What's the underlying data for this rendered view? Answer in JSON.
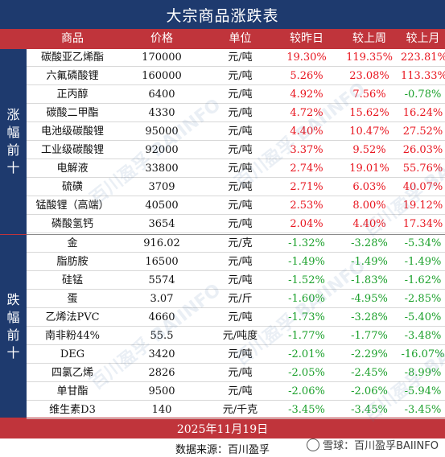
{
  "title": "大宗商品涨跌表",
  "headers": [
    "商品",
    "价格",
    "单位",
    "较昨日",
    "较上周",
    "较上月"
  ],
  "rise_label": "涨幅前十",
  "fall_label": "跌幅前十",
  "rise_rows": [
    {
      "name": "碳酸亚乙烯酯",
      "price": "170000",
      "unit": "元/吨",
      "d": "19.30%",
      "w": "119.35%",
      "m": "223.81%",
      "ds": "pos",
      "ws": "pos",
      "ms": "pos"
    },
    {
      "name": "六氟磷酸锂",
      "price": "160000",
      "unit": "元/吨",
      "d": "5.26%",
      "w": "23.08%",
      "m": "113.33%",
      "ds": "pos",
      "ws": "pos",
      "ms": "pos"
    },
    {
      "name": "正丙醇",
      "price": "6400",
      "unit": "元/吨",
      "d": "4.92%",
      "w": "7.56%",
      "m": "-0.78%",
      "ds": "pos",
      "ws": "pos",
      "ms": "neg"
    },
    {
      "name": "碳酸二甲酯",
      "price": "4330",
      "unit": "元/吨",
      "d": "4.72%",
      "w": "15.62%",
      "m": "16.24%",
      "ds": "pos",
      "ws": "pos",
      "ms": "pos"
    },
    {
      "name": "电池级碳酸锂",
      "price": "95000",
      "unit": "元/吨",
      "d": "4.40%",
      "w": "10.47%",
      "m": "27.52%",
      "ds": "pos",
      "ws": "pos",
      "ms": "pos"
    },
    {
      "name": "工业级碳酸锂",
      "price": "92000",
      "unit": "元/吨",
      "d": "3.37%",
      "w": "9.52%",
      "m": "26.03%",
      "ds": "pos",
      "ws": "pos",
      "ms": "pos"
    },
    {
      "name": "电解液",
      "price": "33800",
      "unit": "元/吨",
      "d": "2.74%",
      "w": "19.01%",
      "m": "55.76%",
      "ds": "pos",
      "ws": "pos",
      "ms": "pos"
    },
    {
      "name": "硫磺",
      "price": "3709",
      "unit": "元/吨",
      "d": "2.71%",
      "w": "6.03%",
      "m": "40.07%",
      "ds": "pos",
      "ws": "pos",
      "ms": "pos"
    },
    {
      "name": "锰酸锂（高端）",
      "price": "40500",
      "unit": "元/吨",
      "d": "2.53%",
      "w": "8.00%",
      "m": "19.12%",
      "ds": "pos",
      "ws": "pos",
      "ms": "pos"
    },
    {
      "name": "磷酸氢钙",
      "price": "3654",
      "unit": "元/吨",
      "d": "2.04%",
      "w": "4.40%",
      "m": "17.34%",
      "ds": "pos",
      "ws": "pos",
      "ms": "pos"
    }
  ],
  "fall_rows": [
    {
      "name": "金",
      "price": "916.02",
      "unit": "元/克",
      "d": "-1.32%",
      "w": "-3.28%",
      "m": "-5.34%",
      "ds": "neg",
      "ws": "neg",
      "ms": "neg"
    },
    {
      "name": "脂肪胺",
      "price": "16500",
      "unit": "元/吨",
      "d": "-1.49%",
      "w": "-1.49%",
      "m": "-1.49%",
      "ds": "neg",
      "ws": "neg",
      "ms": "neg"
    },
    {
      "name": "硅锰",
      "price": "5574",
      "unit": "元/吨",
      "d": "-1.52%",
      "w": "-1.83%",
      "m": "-1.62%",
      "ds": "neg",
      "ws": "neg",
      "ms": "neg"
    },
    {
      "name": "蛋",
      "price": "3.07",
      "unit": "元/斤",
      "d": "-1.60%",
      "w": "-4.95%",
      "m": "-2.85%",
      "ds": "neg",
      "ws": "neg",
      "ms": "neg"
    },
    {
      "name": "乙烯法PVC",
      "price": "4660",
      "unit": "元/吨",
      "d": "-1.73%",
      "w": "-3.28%",
      "m": "-5.40%",
      "ds": "neg",
      "ws": "neg",
      "ms": "neg"
    },
    {
      "name": "南非粉44%",
      "price": "55.5",
      "unit": "元/吨度",
      "d": "-1.77%",
      "w": "-1.77%",
      "m": "-3.48%",
      "ds": "neg",
      "ws": "neg",
      "ms": "neg"
    },
    {
      "name": "DEG",
      "price": "3420",
      "unit": "元/吨",
      "d": "-2.01%",
      "w": "-2.29%",
      "m": "-16.07%",
      "ds": "neg",
      "ws": "neg",
      "ms": "neg"
    },
    {
      "name": "四氯乙烯",
      "price": "2826",
      "unit": "元/吨",
      "d": "-2.05%",
      "w": "-2.45%",
      "m": "-8.99%",
      "ds": "neg",
      "ws": "neg",
      "ms": "neg"
    },
    {
      "name": "单甘酯",
      "price": "9500",
      "unit": "元/吨",
      "d": "-2.06%",
      "w": "-2.06%",
      "m": "-5.94%",
      "ds": "neg",
      "ws": "neg",
      "ms": "neg"
    },
    {
      "name": "维生素D3",
      "price": "140",
      "unit": "元/千克",
      "d": "-3.45%",
      "w": "-3.45%",
      "m": "-3.45%",
      "ds": "neg",
      "ws": "neg",
      "ms": "neg"
    }
  ],
  "date": "2025年11月19日",
  "source": "数据来源：百川盈孚",
  "watermark_text": "百川盈孚 BAIINFO",
  "xueqiu_badge": "雪球：百川盈孚BAIINFO",
  "colors": {
    "navy": "#1e3a6e",
    "red": "#c0343b",
    "up": "#e8141e",
    "down": "#1aa02a"
  }
}
